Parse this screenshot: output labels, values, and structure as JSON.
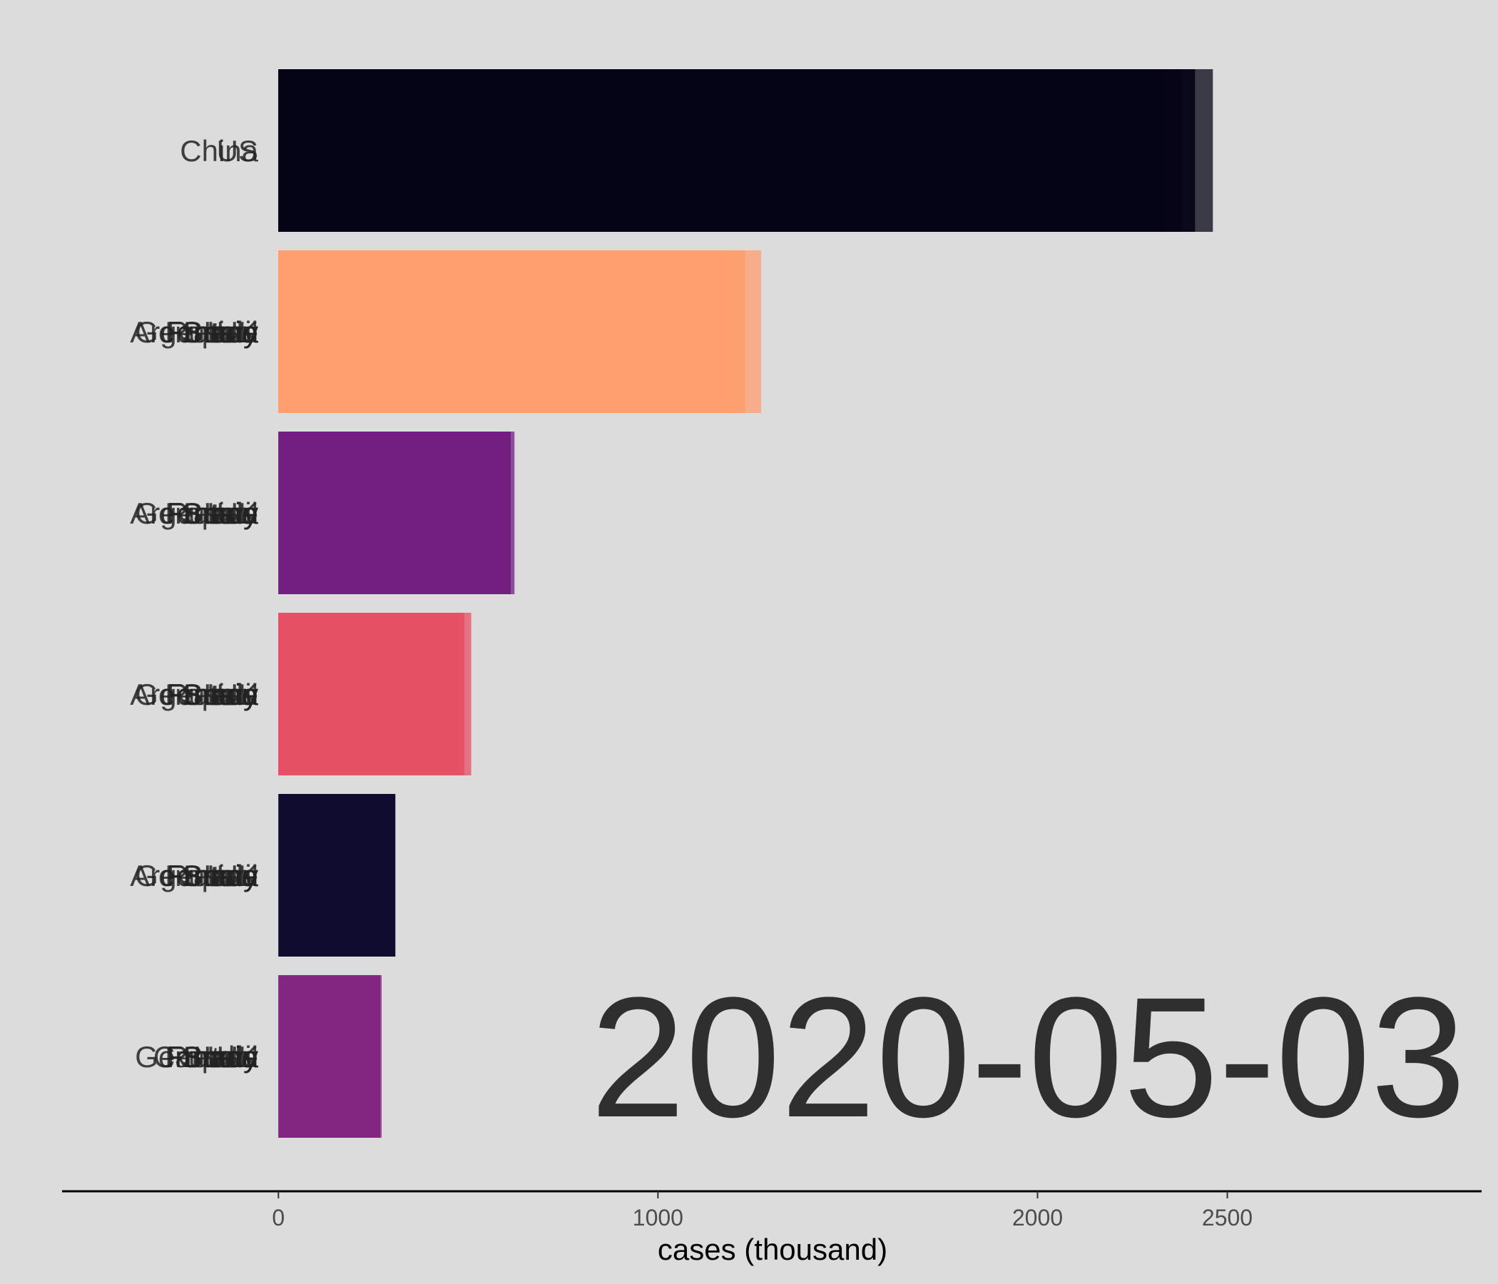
{
  "chart_data": {
    "type": "bar",
    "orientation": "horizontal",
    "title": "",
    "xlabel": "cases (thousand)",
    "ylabel": "",
    "xlim": [
      -570,
      3170
    ],
    "xticks": [
      0,
      1000,
      2000,
      2500
    ],
    "grid": false,
    "legend": "none",
    "background": "#dcdcdc",
    "date_text": "2020-05-03",
    "rows": [
      {
        "rank": 1,
        "label_layers": [
          "China",
          "US"
        ],
        "color": "#050416",
        "value": 2462,
        "ghost_values": [
          2415,
          2380,
          2330
        ]
      },
      {
        "rank": 2,
        "label_layers": [
          "Spain",
          "Italy",
          "France",
          "Germany",
          "Iran",
          "Brazil",
          "Russia",
          "UK",
          "Argentina"
        ],
        "color": "#fe9f6d",
        "value": 1272,
        "ghost_values": [
          1230,
          1190
        ]
      },
      {
        "rank": 3,
        "label_layers": [
          "Spain",
          "Italy",
          "France",
          "Germany",
          "Iran",
          "Brazil",
          "Russia",
          "UK",
          "Argentina"
        ],
        "color": "#721f81",
        "value": 622,
        "ghost_values": [
          612
        ]
      },
      {
        "rank": 4,
        "label_layers": [
          "Spain",
          "Italy",
          "France",
          "Germany",
          "Iran",
          "Brazil",
          "Russia",
          "UK",
          "Argentina"
        ],
        "color": "#e55064",
        "value": 508,
        "ghost_values": [
          490,
          475
        ]
      },
      {
        "rank": 5,
        "label_layers": [
          "Spain",
          "Italy",
          "France",
          "Germany",
          "Iran",
          "Brazil",
          "Russia",
          "UK",
          "Argentina"
        ],
        "color": "#0f0c2f",
        "value": 308,
        "ghost_values": []
      },
      {
        "rank": 6,
        "label_layers": [
          "Spain",
          "Italy",
          "France",
          "Germany",
          "Iran",
          "Brazil",
          "Russia",
          "UK",
          "India",
          "Canada"
        ],
        "color": "#822681",
        "value": 272,
        "ghost_values": [
          268
        ]
      }
    ]
  }
}
